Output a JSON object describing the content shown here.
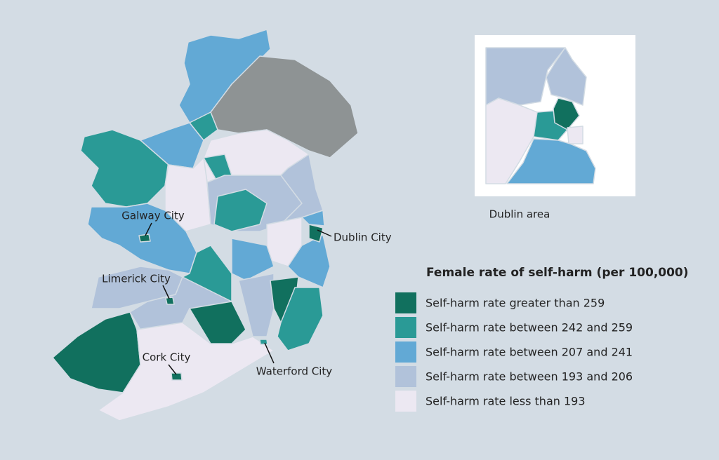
{
  "map": {
    "cities": [
      "Galway City",
      "Limerick City",
      "Cork City",
      "Waterford City",
      "Dublin City"
    ],
    "inset": {
      "label": "Dublin area"
    },
    "legend": {
      "title": "Female rate of self-harm (per 100,000)",
      "items": [
        {
          "label": "Self-harm rate greater than 259",
          "color": "#11705e"
        },
        {
          "label": "Self-harm rate between 242 and 259",
          "color": "#2a9a96"
        },
        {
          "label": "Self-harm rate between 207 and 241",
          "color": "#62a9d5"
        },
        {
          "label": "Self-harm rate between 193 and 206",
          "color": "#b1c2da"
        },
        {
          "label": "Self-harm rate less than 193",
          "color": "#ece8f2"
        }
      ]
    }
  }
}
